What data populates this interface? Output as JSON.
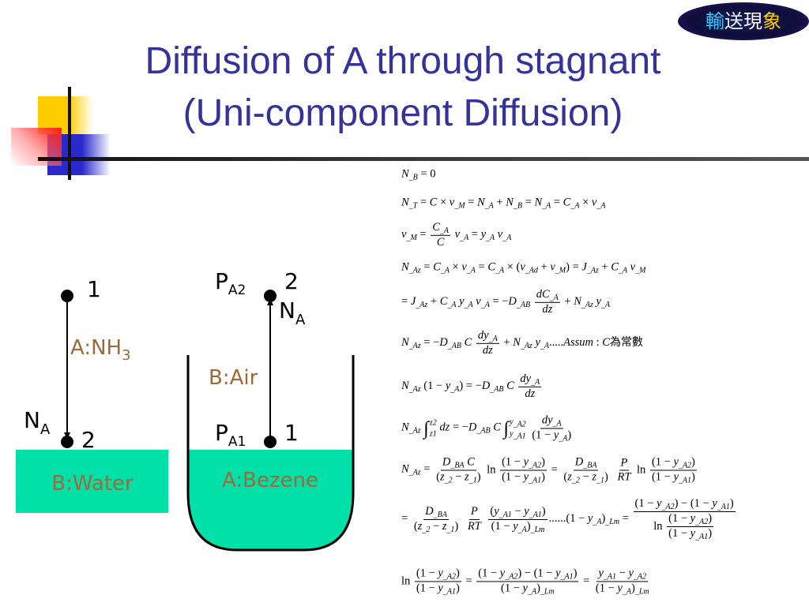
{
  "badge": {
    "chars": [
      "輸",
      "送",
      "現",
      "象"
    ],
    "colors": [
      "#33ccff",
      "#e8f4ff",
      "#ffffff",
      "#ffcc00"
    ]
  },
  "title": {
    "line1": "Diffusion of A through stagnant",
    "line2": "(Uni-component Diffusion)",
    "color": "#333399"
  },
  "diagram": {
    "left": {
      "top_point": "1",
      "bottom_point": "2",
      "flux": "N",
      "flux_sub": "A",
      "gas": "A:NH",
      "gas_sub": "3",
      "liquid": "B:Water"
    },
    "right": {
      "p_top": "P",
      "p_top_sub": "A2",
      "top_point": "2",
      "flux": "N",
      "flux_sub": "A",
      "gas": "B:Air",
      "p_bottom": "P",
      "p_bottom_sub": "A1",
      "bottom_point": "1",
      "liquid": "A:Bezene"
    },
    "colors": {
      "liquid": "#00e0a8",
      "label": "#9c6b3a"
    }
  },
  "equations": [
    [
      "N_B = 0"
    ],
    [
      "N_T = C × v_M = N_A + N_B = N_A = C_A × v_A"
    ],
    [
      "v_M = ",
      {
        "f": [
          "C_A",
          "C"
        ]
      },
      " v_A = y_A v_A"
    ],
    [
      "N_Az = C_A × v_A = C_A × (v_Ad + v_M) = J_Az + C_A v_M"
    ],
    [
      "= J_Az + C_A y_A v_A = −D_AB ",
      {
        "f": [
          "dC_A",
          "dz"
        ]
      },
      " + N_Az y_A"
    ],
    [
      "N_Az = −D_AB C ",
      {
        "f": [
          "dy_A",
          "dz"
        ]
      },
      " + N_Az y_A.....Assum : C為常數"
    ],
    [
      "N_Az (1 − y_A) = −D_AB C ",
      {
        "f": [
          "dy_A",
          "dz"
        ]
      }
    ],
    [
      "N_Az ",
      {
        "int": [
          "z1",
          "z2"
        ]
      },
      " dz = −D_AB C ",
      {
        "int": [
          "y_A1",
          "y_A2"
        ]
      },
      " ",
      {
        "f": [
          "dy_A",
          "(1 − y_A)"
        ]
      }
    ],
    [
      "N_Az = ",
      {
        "f": [
          "D_BA C",
          "(z_2 − z_1)"
        ]
      },
      " ln ",
      {
        "f": [
          "(1 − y_A2)",
          "(1 − y_A1)"
        ]
      },
      " = ",
      {
        "f": [
          "D_BA",
          "(z_2 − z_1)"
        ]
      },
      " ",
      {
        "f": [
          "P",
          "RT"
        ]
      },
      " ln ",
      {
        "f": [
          "(1 − y_A2)",
          "(1 − y_A1)"
        ]
      }
    ],
    [
      "= ",
      {
        "f": [
          "D_BA",
          "(z_2 − z_1)"
        ]
      },
      " ",
      {
        "f": [
          "P",
          "RT"
        ]
      },
      " ",
      {
        "f": [
          "(y_A1 − y_A1)",
          "(1 − y_A)_Lm"
        ]
      },
      "......(1 − y_A)_Lm = ",
      {
        "f": [
          "(1 − y_A2) − (1 − y_A1)",
          [
            "ln ",
            {
              "f": [
                "(1 − y_A2)",
                "(1 − y_A1)"
              ]
            }
          ]
        ]
      }
    ],
    [
      "ln ",
      {
        "f": [
          "(1 − y_A2)",
          "(1 − y_A1)"
        ]
      },
      " = ",
      {
        "f": [
          "(1 − y_A2) − (1 − y_A1)",
          "(1 − y_A)_Lm"
        ]
      },
      " = ",
      {
        "f": [
          "y_A1 − y_A2",
          "(1 − y_A)_Lm"
        ]
      }
    ]
  ]
}
